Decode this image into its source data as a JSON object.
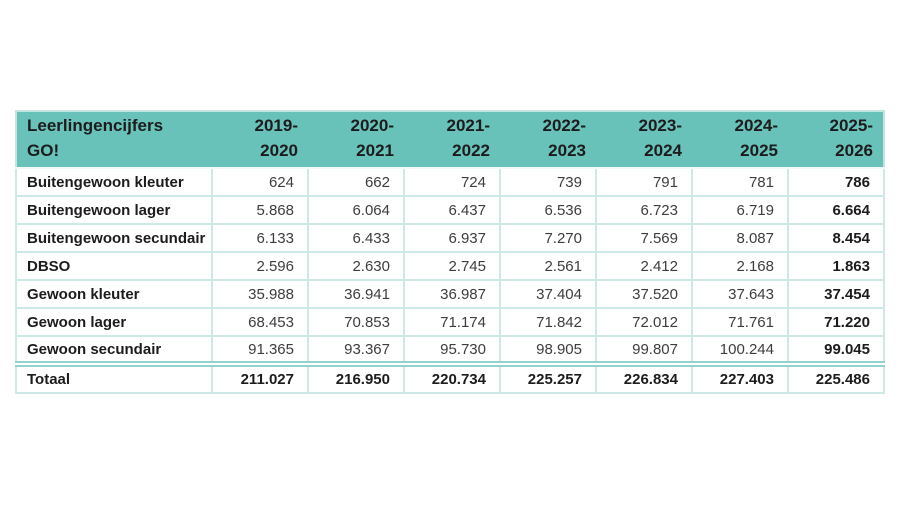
{
  "header": {
    "title": "Leerlingencijfers\nGO!",
    "columns": [
      "2019-\n2020",
      "2020-\n2021",
      "2021-\n2022",
      "2022-\n2023",
      "2023-\n2024",
      "2024-\n2025",
      "2025-\n2026"
    ]
  },
  "chart_data": {
    "type": "table",
    "title": "Leerlingencijfers GO!",
    "columns": [
      "2019-2020",
      "2020-2021",
      "2021-2022",
      "2022-2023",
      "2023-2024",
      "2024-2025",
      "2025-2026"
    ],
    "rows": [
      {
        "label": "Buitengewoon kleuter",
        "values": [
          "624",
          "662",
          "724",
          "739",
          "791",
          "781",
          "786"
        ]
      },
      {
        "label": "Buitengewoon lager",
        "values": [
          "5.868",
          "6.064",
          "6.437",
          "6.536",
          "6.723",
          "6.719",
          "6.664"
        ]
      },
      {
        "label": "Buitengewoon secundair",
        "values": [
          "6.133",
          "6.433",
          "6.937",
          "7.270",
          "7.569",
          "8.087",
          "8.454"
        ]
      },
      {
        "label": "DBSO",
        "values": [
          "2.596",
          "2.630",
          "2.745",
          "2.561",
          "2.412",
          "2.168",
          "1.863"
        ]
      },
      {
        "label": "Gewoon kleuter",
        "values": [
          "35.988",
          "36.941",
          "36.987",
          "37.404",
          "37.520",
          "37.643",
          "37.454"
        ]
      },
      {
        "label": "Gewoon lager",
        "values": [
          "68.453",
          "70.853",
          "71.174",
          "71.842",
          "72.012",
          "71.761",
          "71.220"
        ]
      },
      {
        "label": "Gewoon secundair",
        "values": [
          "91.365",
          "93.367",
          "95.730",
          "98.905",
          "99.807",
          "100.244",
          "99.045"
        ]
      }
    ],
    "total": {
      "label": "Totaal",
      "values": [
        "211.027",
        "216.950",
        "220.734",
        "225.257",
        "226.834",
        "227.403",
        "225.486"
      ]
    },
    "layout_hints": {
      "last_column_bold": true,
      "total_row_bold": true,
      "number_format": "thousands-dot"
    }
  },
  "colors": {
    "header_bg": "#68c2ba",
    "grid_border": "#cde9e5",
    "total_separator": "#93d3cc",
    "text_primary": "#1c1c1c",
    "text_numbers": "#3d3d3d",
    "background": "#ffffff"
  }
}
